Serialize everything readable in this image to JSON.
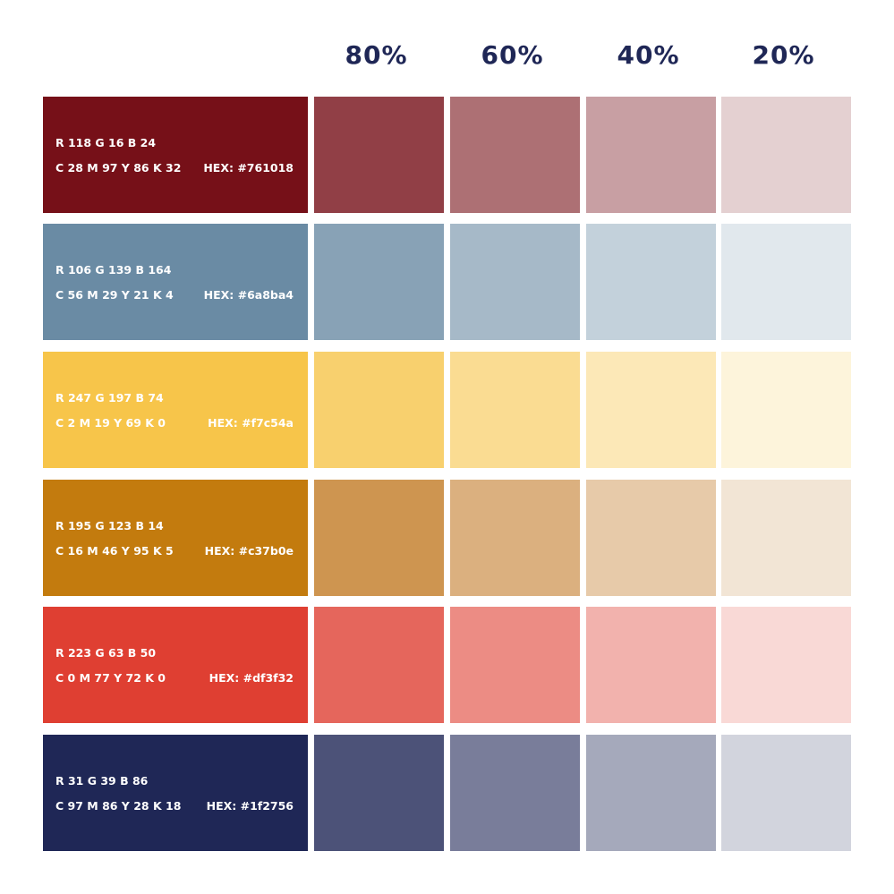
{
  "tint_headers": [
    "80%",
    "60%",
    "40%",
    "20%"
  ],
  "rows": [
    {
      "rgb": "R 118 G 16 B 24",
      "cmyk": "C 28 M 97 Y 86 K 32",
      "hex": "HEX: #761018",
      "color": "#761018",
      "text_color": "#ffffff",
      "tints": [
        "#913f46",
        "#ad7074",
        "#c89fa3",
        "#e4d0d1"
      ]
    },
    {
      "rgb": "R 106 G 139 B 164",
      "cmyk": "C 56 M 29 Y 21 K 4",
      "hex": "HEX: #6a8ba4",
      "color": "#6a8ba4",
      "text_color": "#ffffff",
      "tints": [
        "#88a2b6",
        "#a6b9c8",
        "#c3d1db",
        "#e1e8ed"
      ]
    },
    {
      "rgb": "R 247 G 197 B 74",
      "cmyk": "C 2 M 19 Y 69 K 0",
      "hex": "HEX: #f7c54a",
      "color": "#f7c54a",
      "text_color": "#ffffff",
      "tints": [
        "#f8d06e",
        "#fadc92",
        "#fce8b7",
        "#fdf4db"
      ]
    },
    {
      "rgb": "R 195 G 123 B 14",
      "cmyk": "C 16 M 46 Y 95 K 5",
      "hex": "HEX: #c37b0e",
      "color": "#c37b0e",
      "text_color": "#ffffff",
      "tints": [
        "#ce9550",
        "#dbb07f",
        "#e7caa9",
        "#f2e5d5"
      ]
    },
    {
      "rgb": "R 223 G 63 B 50",
      "cmyk": "C 0 M 77 Y 72 K 0",
      "hex": "HEX: #df3f32",
      "color": "#df3f32",
      "text_color": "#ffffff",
      "tints": [
        "#e5665c",
        "#ec8c84",
        "#f2b2ad",
        "#f9d9d6"
      ]
    },
    {
      "rgb": "R 31 G 39 B 86",
      "cmyk": "C 97 M 86 Y 28 K 18",
      "hex": "HEX: #1f2756",
      "color": "#1f2756",
      "text_color": "#ffffff",
      "tints": [
        "#4c5278",
        "#797d9a",
        "#a5a9bb",
        "#d2d4dd"
      ]
    }
  ]
}
